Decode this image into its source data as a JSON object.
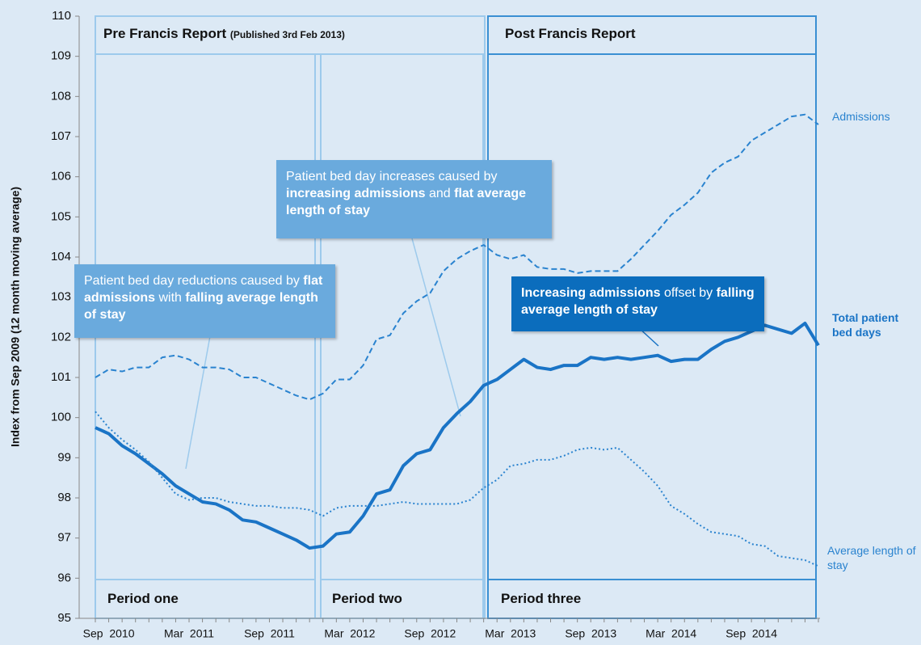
{
  "chart_data": {
    "type": "line",
    "y_label": "Index from Sep 2009 (12 month moving average)",
    "categories": [
      null,
      "Sep  2010",
      null,
      null,
      null,
      null,
      null,
      "Mar  2011",
      null,
      null,
      null,
      null,
      null,
      "Sep  2011",
      null,
      null,
      null,
      null,
      null,
      "Mar  2012",
      null,
      null,
      null,
      null,
      null,
      "Sep  2012",
      null,
      null,
      null,
      null,
      null,
      "Mar  2013",
      null,
      null,
      null,
      null,
      null,
      "Sep  2013",
      null,
      null,
      null,
      null,
      null,
      "Mar  2014",
      null,
      null,
      null,
      null,
      null,
      "Sep  2014",
      null,
      null,
      null,
      null,
      null
    ],
    "ylim": [
      95,
      110
    ],
    "yticks": [
      95,
      96,
      97,
      98,
      99,
      100,
      101,
      102,
      103,
      104,
      105,
      106,
      107,
      108,
      109,
      110
    ],
    "series": [
      {
        "name": "Admissions",
        "color": "#2a83cf",
        "style": "dashed",
        "values": [
          101.0,
          101.2,
          101.15,
          101.25,
          101.25,
          101.5,
          101.55,
          101.45,
          101.25,
          101.25,
          101.2,
          101.0,
          101.0,
          100.85,
          100.7,
          100.55,
          100.45,
          100.6,
          100.95,
          100.95,
          101.3,
          101.95,
          102.05,
          102.6,
          102.9,
          103.1,
          103.65,
          103.95,
          104.15,
          104.3,
          104.05,
          103.95,
          104.05,
          103.75,
          103.7,
          103.7,
          103.6,
          103.65,
          103.65,
          103.65,
          103.95,
          104.3,
          104.65,
          105.05,
          105.3,
          105.6,
          106.1,
          106.35,
          106.5,
          106.9,
          107.1,
          107.3,
          107.5,
          107.55,
          107.3
        ]
      },
      {
        "name": "Total patient bed days",
        "color": "#1a74c6",
        "style": "solid",
        "values": [
          99.75,
          99.6,
          99.3,
          99.1,
          98.85,
          98.6,
          98.3,
          98.1,
          97.9,
          97.85,
          97.7,
          97.45,
          97.4,
          97.25,
          97.1,
          96.95,
          96.75,
          96.8,
          97.1,
          97.15,
          97.55,
          98.1,
          98.2,
          98.8,
          99.1,
          99.2,
          99.75,
          100.1,
          100.4,
          100.8,
          100.95,
          101.2,
          101.45,
          101.25,
          101.2,
          101.3,
          101.3,
          101.5,
          101.45,
          101.5,
          101.45,
          101.5,
          101.55,
          101.4,
          101.45,
          101.45,
          101.7,
          101.9,
          102.0,
          102.15,
          102.3,
          102.2,
          102.1,
          102.35,
          101.8
        ]
      },
      {
        "name": "Average length of stay",
        "color": "#2a83cf",
        "style": "dotted",
        "values": [
          100.15,
          99.75,
          99.45,
          99.2,
          98.9,
          98.5,
          98.1,
          97.95,
          98.0,
          98.0,
          97.9,
          97.85,
          97.8,
          97.8,
          97.75,
          97.75,
          97.7,
          97.55,
          97.75,
          97.8,
          97.8,
          97.8,
          97.85,
          97.9,
          97.85,
          97.85,
          97.85,
          97.85,
          97.95,
          98.25,
          98.45,
          98.8,
          98.85,
          98.95,
          98.95,
          99.05,
          99.2,
          99.25,
          99.2,
          99.25,
          98.95,
          98.65,
          98.3,
          97.8,
          97.6,
          97.35,
          97.15,
          97.1,
          97.05,
          96.85,
          96.8,
          96.55,
          96.5,
          96.45,
          96.3
        ]
      }
    ],
    "regions": [
      {
        "title": "Pre Francis Report",
        "note": "(Published 3rd Feb 2013)"
      },
      {
        "title": "Post Francis Report"
      }
    ],
    "periods": [
      "Period one",
      "Period two",
      "Period three"
    ],
    "callouts": [
      {
        "parts": [
          {
            "text": "Patient bed day reductions caused by ",
            "bold": false
          },
          {
            "text": "flat admissions",
            "bold": true
          },
          {
            "text": " with ",
            "bold": false
          },
          {
            "text": "falling average length of stay",
            "bold": true
          }
        ]
      },
      {
        "parts": [
          {
            "text": "Patient bed day increases caused by ",
            "bold": false
          },
          {
            "text": "increasing admissions",
            "bold": true
          },
          {
            "text": " and ",
            "bold": false
          },
          {
            "text": "flat average length of stay",
            "bold": true
          }
        ]
      },
      {
        "parts": [
          {
            "text": "Increasing admissions",
            "bold": true
          },
          {
            "text": " offset by ",
            "bold": false
          },
          {
            "text": "falling average length of stay",
            "bold": true
          }
        ]
      }
    ]
  }
}
